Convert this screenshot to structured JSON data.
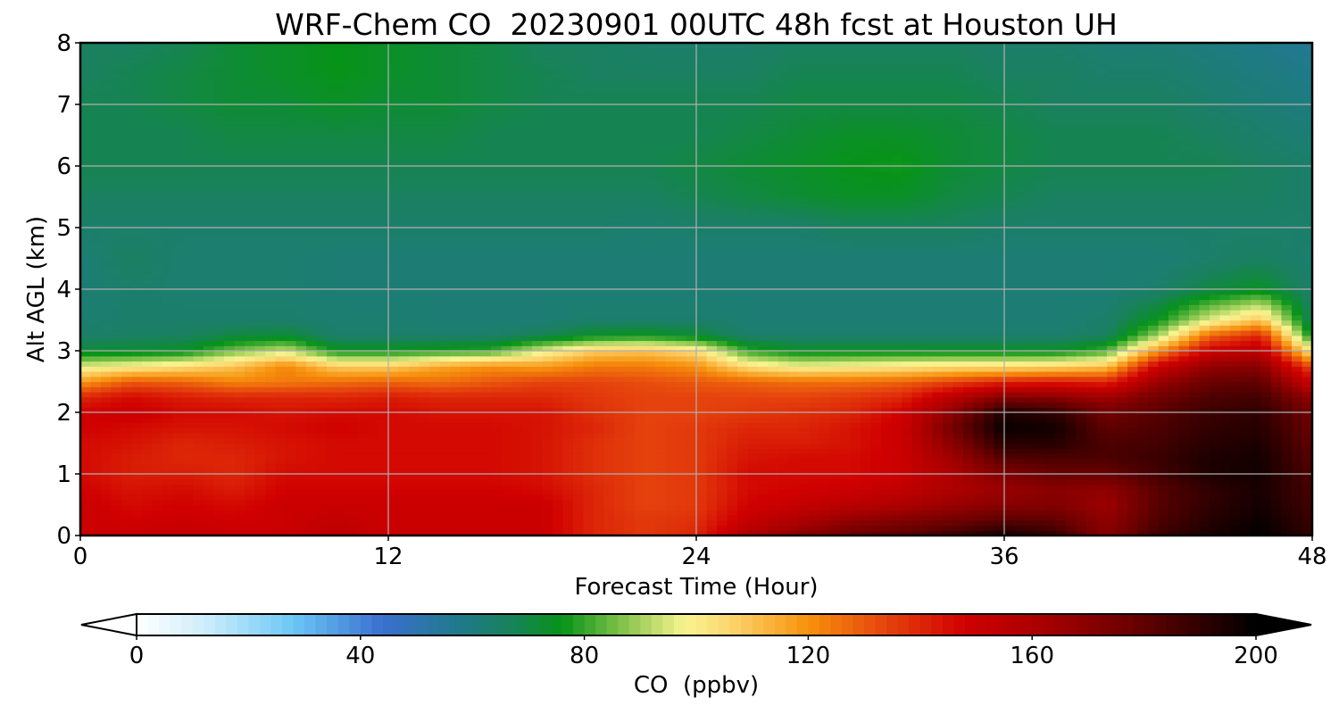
{
  "chart_data": {
    "type": "heatmap",
    "title": "WRF-Chem CO  20230901 00UTC 48h fcst at Houston UH",
    "xlabel": "Forecast Time (Hour)",
    "ylabel": "Alt AGL (km)",
    "xlim": [
      0,
      48
    ],
    "ylim": [
      0,
      8
    ],
    "x_ticks": [
      "0",
      "12",
      "24",
      "36",
      "48"
    ],
    "y_ticks": [
      "0",
      "1",
      "2",
      "3",
      "4",
      "5",
      "6",
      "7",
      "8"
    ],
    "grid": true,
    "colorbar": {
      "label": "CO  (ppbv)",
      "range": [
        0,
        200
      ],
      "ticks": [
        "0",
        "40",
        "80",
        "120",
        "160",
        "200"
      ],
      "extend": "both",
      "orientation": "horizontal",
      "placement": "bottom",
      "stops": [
        {
          "value": 0,
          "color": "#ffffff"
        },
        {
          "value": 12,
          "color": "#cfeefc"
        },
        {
          "value": 28,
          "color": "#6cc6f5"
        },
        {
          "value": 44,
          "color": "#3a6fcf"
        },
        {
          "value": 58,
          "color": "#1f7a88"
        },
        {
          "value": 66,
          "color": "#1a8060"
        },
        {
          "value": 76,
          "color": "#079319"
        },
        {
          "value": 88,
          "color": "#8fc851"
        },
        {
          "value": 98,
          "color": "#f8f490"
        },
        {
          "value": 106,
          "color": "#fcd66f"
        },
        {
          "value": 120,
          "color": "#f7910c"
        },
        {
          "value": 134,
          "color": "#e5420d"
        },
        {
          "value": 148,
          "color": "#d00000"
        },
        {
          "value": 162,
          "color": "#a80000"
        },
        {
          "value": 178,
          "color": "#6a0000"
        },
        {
          "value": 200,
          "color": "#000000"
        }
      ]
    },
    "x": [
      0,
      2,
      4,
      6,
      8,
      10,
      12,
      14,
      16,
      18,
      20,
      22,
      24,
      26,
      28,
      30,
      32,
      34,
      36,
      38,
      40,
      42,
      44,
      46,
      48
    ],
    "y": [
      0,
      0.25,
      0.5,
      0.75,
      1.0,
      1.25,
      1.5,
      1.75,
      2.0,
      2.25,
      2.5,
      2.75,
      3.0,
      3.25,
      3.5,
      4.0,
      4.5,
      5.0,
      5.5,
      6.0,
      6.5,
      7.0,
      7.5,
      8.0
    ],
    "z_rows": [
      [
        150,
        150,
        152,
        150,
        150,
        155,
        150,
        150,
        152,
        150,
        140,
        136,
        140,
        160,
        170,
        178,
        182,
        188,
        196,
        190,
        170,
        188,
        195,
        200,
        190
      ],
      [
        150,
        148,
        150,
        148,
        150,
        153,
        150,
        150,
        150,
        150,
        140,
        136,
        138,
        152,
        160,
        168,
        172,
        176,
        182,
        180,
        168,
        184,
        192,
        198,
        188
      ],
      [
        150,
        146,
        148,
        146,
        150,
        150,
        150,
        150,
        150,
        150,
        140,
        134,
        136,
        148,
        152,
        156,
        160,
        166,
        170,
        172,
        165,
        182,
        190,
        196,
        186
      ],
      [
        148,
        144,
        146,
        142,
        148,
        148,
        148,
        148,
        148,
        146,
        140,
        134,
        136,
        146,
        148,
        150,
        154,
        160,
        166,
        170,
        168,
        182,
        190,
        195,
        185
      ],
      [
        146,
        142,
        142,
        140,
        146,
        146,
        146,
        146,
        146,
        144,
        138,
        134,
        136,
        146,
        146,
        146,
        150,
        160,
        172,
        178,
        178,
        186,
        194,
        196,
        184
      ],
      [
        146,
        142,
        140,
        140,
        144,
        146,
        146,
        146,
        146,
        144,
        138,
        134,
        136,
        144,
        146,
        146,
        150,
        164,
        182,
        184,
        184,
        188,
        194,
        196,
        182
      ],
      [
        146,
        144,
        140,
        142,
        144,
        146,
        146,
        146,
        146,
        144,
        138,
        134,
        136,
        142,
        142,
        144,
        150,
        170,
        192,
        192,
        184,
        186,
        192,
        194,
        180
      ],
      [
        148,
        146,
        144,
        144,
        146,
        148,
        146,
        146,
        146,
        144,
        140,
        134,
        136,
        140,
        140,
        144,
        150,
        176,
        198,
        196,
        180,
        184,
        190,
        192,
        178
      ],
      [
        148,
        150,
        146,
        146,
        144,
        146,
        146,
        144,
        144,
        144,
        138,
        134,
        134,
        136,
        138,
        140,
        148,
        170,
        194,
        190,
        176,
        182,
        188,
        190,
        176
      ],
      [
        140,
        146,
        142,
        140,
        140,
        140,
        142,
        140,
        140,
        140,
        136,
        134,
        134,
        134,
        134,
        136,
        140,
        156,
        172,
        170,
        164,
        176,
        184,
        186,
        168
      ],
      [
        118,
        130,
        128,
        122,
        124,
        126,
        128,
        126,
        130,
        134,
        134,
        132,
        130,
        128,
        126,
        126,
        128,
        134,
        140,
        142,
        140,
        166,
        178,
        180,
        150
      ],
      [
        96,
        100,
        104,
        110,
        122,
        108,
        108,
        116,
        120,
        118,
        124,
        124,
        120,
        104,
        98,
        100,
        102,
        104,
        104,
        106,
        110,
        150,
        168,
        170,
        132
      ],
      [
        72,
        72,
        74,
        86,
        94,
        76,
        76,
        78,
        80,
        96,
        108,
        110,
        104,
        80,
        74,
        74,
        74,
        74,
        74,
        74,
        82,
        120,
        150,
        156,
        100
      ],
      [
        64,
        66,
        66,
        70,
        72,
        64,
        64,
        64,
        64,
        68,
        74,
        76,
        72,
        64,
        64,
        64,
        64,
        64,
        64,
        64,
        66,
        90,
        128,
        140,
        74
      ],
      [
        63,
        64,
        64,
        64,
        64,
        63,
        63,
        62,
        62,
        62,
        64,
        64,
        64,
        62,
        62,
        62,
        62,
        62,
        62,
        62,
        64,
        76,
        96,
        110,
        66
      ],
      [
        62,
        64,
        63,
        63,
        63,
        62,
        62,
        62,
        62,
        62,
        62,
        62,
        62,
        62,
        62,
        62,
        62,
        62,
        62,
        62,
        62,
        64,
        70,
        74,
        64
      ],
      [
        62,
        66,
        63,
        63,
        63,
        62,
        62,
        62,
        62,
        62,
        62,
        62,
        62,
        62,
        62,
        62,
        62,
        62,
        62,
        62,
        62,
        62,
        64,
        66,
        63
      ],
      [
        64,
        64,
        64,
        64,
        64,
        64,
        64,
        64,
        64,
        64,
        64,
        63,
        64,
        64,
        64,
        66,
        66,
        66,
        64,
        64,
        64,
        64,
        64,
        64,
        64
      ],
      [
        66,
        66,
        66,
        66,
        66,
        66,
        66,
        66,
        66,
        66,
        66,
        66,
        68,
        70,
        72,
        74,
        74,
        70,
        68,
        66,
        66,
        66,
        66,
        66,
        64
      ],
      [
        68,
        68,
        68,
        68,
        68,
        68,
        68,
        68,
        68,
        68,
        68,
        68,
        70,
        72,
        74,
        76,
        77,
        72,
        70,
        68,
        68,
        68,
        68,
        66,
        64
      ],
      [
        68,
        68,
        68,
        70,
        70,
        70,
        70,
        70,
        68,
        68,
        68,
        68,
        68,
        70,
        72,
        74,
        74,
        72,
        70,
        68,
        68,
        68,
        66,
        64,
        62
      ],
      [
        68,
        68,
        70,
        72,
        72,
        74,
        72,
        72,
        70,
        68,
        68,
        68,
        68,
        68,
        70,
        70,
        70,
        70,
        68,
        66,
        66,
        66,
        64,
        62,
        60
      ],
      [
        66,
        68,
        70,
        72,
        74,
        76,
        74,
        72,
        70,
        68,
        66,
        66,
        66,
        66,
        68,
        68,
        68,
        68,
        66,
        66,
        64,
        64,
        62,
        60,
        58
      ],
      [
        66,
        66,
        68,
        72,
        74,
        76,
        74,
        72,
        70,
        66,
        66,
        64,
        64,
        64,
        66,
        66,
        66,
        66,
        64,
        64,
        62,
        62,
        60,
        58,
        56
      ]
    ]
  }
}
